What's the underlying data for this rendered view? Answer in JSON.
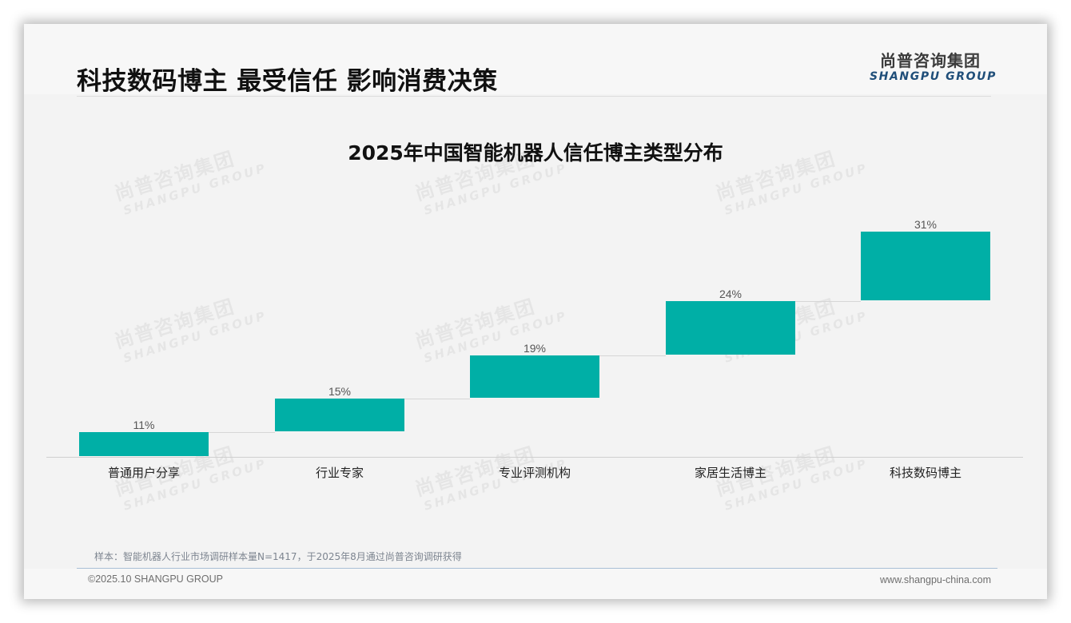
{
  "header": {
    "title": "科技数码博主 最受信任 影响消费决策",
    "logo_cn": "尚普咨询集团",
    "logo_en": "SHANGPU GROUP"
  },
  "watermark": {
    "cn": "尚普咨询集团",
    "en": "SHANGPU GROUP"
  },
  "colors": {
    "bar": "#00afa6",
    "connector": "#d6d6d6",
    "title": "#111111",
    "logo_en": "#1f4e79"
  },
  "chart_data": {
    "type": "bar",
    "subtype": "waterfall-style stepped bars (each bar starts at the previous bar's top)",
    "title": "2025年中国智能机器人信任博主类型分布",
    "categories": [
      "普通用户分享",
      "行业专家",
      "专业评测机构",
      "家居生活博主",
      "科技数码博主"
    ],
    "values": [
      11,
      15,
      19,
      24,
      31
    ],
    "value_labels": [
      "11%",
      "15%",
      "19%",
      "24%",
      "31%"
    ],
    "unit": "%",
    "xlabel": "",
    "ylabel": "",
    "grid": false,
    "legend": null,
    "bar_color": "#00afa6"
  },
  "footer": {
    "note": "样本：智能机器人行业市场调研样本量N=1417，于2025年8月通过尚普咨询调研获得",
    "copyright": "©2025.10 SHANGPU GROUP",
    "website": "www.shangpu-china.com"
  }
}
